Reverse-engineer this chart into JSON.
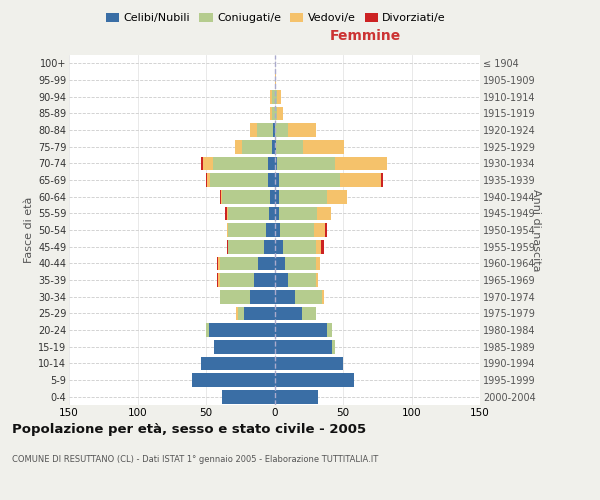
{
  "age_groups": [
    "0-4",
    "5-9",
    "10-14",
    "15-19",
    "20-24",
    "25-29",
    "30-34",
    "35-39",
    "40-44",
    "45-49",
    "50-54",
    "55-59",
    "60-64",
    "65-69",
    "70-74",
    "75-79",
    "80-84",
    "85-89",
    "90-94",
    "95-99",
    "100+"
  ],
  "birth_years": [
    "2000-2004",
    "1995-1999",
    "1990-1994",
    "1985-1989",
    "1980-1984",
    "1975-1979",
    "1970-1974",
    "1965-1969",
    "1960-1964",
    "1955-1959",
    "1950-1954",
    "1945-1949",
    "1940-1944",
    "1935-1939",
    "1930-1934",
    "1925-1929",
    "1920-1924",
    "1915-1919",
    "1910-1914",
    "1905-1909",
    "≤ 1904"
  ],
  "colors": {
    "celibe": "#3a6ea5",
    "coniugato": "#b5cc8e",
    "vedovo": "#f5c26b",
    "divorziato": "#cc2222"
  },
  "males": {
    "celibe": [
      38,
      60,
      54,
      44,
      48,
      22,
      18,
      15,
      12,
      8,
      6,
      4,
      3,
      5,
      5,
      2,
      1,
      0,
      0,
      0,
      0
    ],
    "coniugato": [
      0,
      0,
      0,
      0,
      2,
      5,
      22,
      25,
      28,
      26,
      28,
      30,
      35,
      42,
      40,
      22,
      12,
      2,
      2,
      0,
      0
    ],
    "vedovo": [
      0,
      0,
      0,
      0,
      0,
      1,
      0,
      1,
      1,
      0,
      1,
      1,
      1,
      2,
      7,
      5,
      5,
      1,
      1,
      0,
      0
    ],
    "divorziato": [
      0,
      0,
      0,
      0,
      0,
      0,
      0,
      1,
      1,
      1,
      0,
      1,
      1,
      1,
      2,
      0,
      0,
      0,
      0,
      0,
      0
    ]
  },
  "females": {
    "nubile": [
      32,
      58,
      50,
      42,
      38,
      20,
      15,
      10,
      8,
      6,
      4,
      3,
      3,
      3,
      2,
      1,
      0,
      0,
      0,
      0,
      0
    ],
    "coniugata": [
      0,
      0,
      0,
      2,
      4,
      10,
      20,
      20,
      22,
      24,
      25,
      28,
      35,
      45,
      42,
      20,
      10,
      2,
      2,
      0,
      0
    ],
    "vedova": [
      0,
      0,
      0,
      0,
      0,
      0,
      1,
      2,
      3,
      4,
      8,
      10,
      15,
      30,
      38,
      30,
      20,
      4,
      3,
      1,
      0
    ],
    "divorziata": [
      0,
      0,
      0,
      0,
      0,
      0,
      0,
      0,
      0,
      2,
      1,
      0,
      0,
      1,
      0,
      0,
      0,
      0,
      0,
      0,
      0
    ]
  },
  "xlim": 150,
  "title": "Popolazione per età, sesso e stato civile - 2005",
  "subtitle": "COMUNE DI RESUTTANO (CL) - Dati ISTAT 1° gennaio 2005 - Elaborazione TUTTITALIA.IT",
  "xlabel_right": "Femmine",
  "ylabel_left": "Fasce di età",
  "ylabel_right": "Anni di nascita",
  "bg_color": "#f0f0eb",
  "plot_bg_color": "#ffffff",
  "xticks": [
    -150,
    -100,
    -50,
    0,
    50,
    100,
    150
  ]
}
